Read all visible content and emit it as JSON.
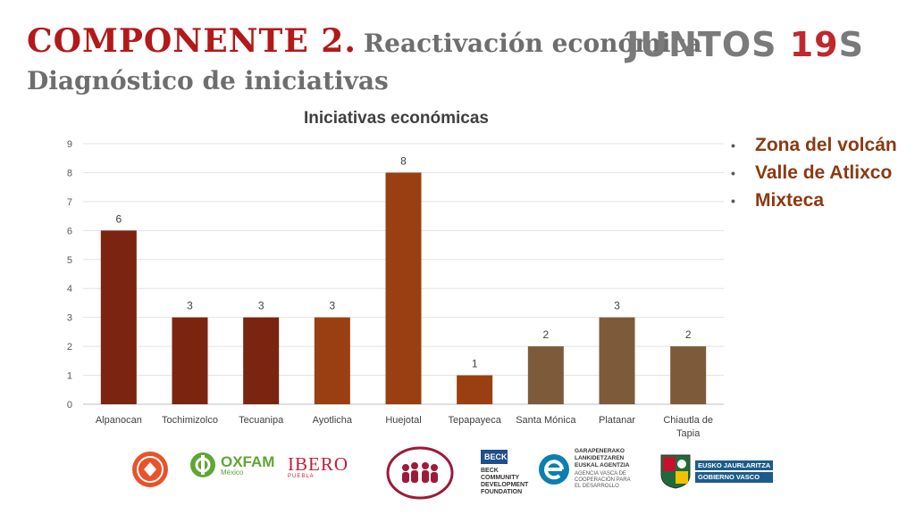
{
  "header": {
    "component": "COMPONENTE 2.",
    "subtitle": "Reactivación económica",
    "line2": "Diagnóstico de iniciativas",
    "brand_text": "JUNTOS",
    "brand_num": "19",
    "brand_suffix": "S"
  },
  "chart_data": {
    "type": "bar",
    "title": "Iniciativas económicas",
    "categories": [
      "Alpanocan",
      "Tochimizolco",
      "Tecuanipa",
      "Ayotlicha",
      "Huejotal",
      "Tepapayeca",
      "Santa Mónica",
      "Platanar",
      "Chiautla de Tapia"
    ],
    "values": [
      6,
      3,
      3,
      3,
      8,
      1,
      2,
      3,
      2
    ],
    "colors": [
      "#7b2410",
      "#7b2410",
      "#7b2410",
      "#9a3f12",
      "#9a3f12",
      "#9a3f12",
      "#7d5a3a",
      "#7d5a3a",
      "#7d5a3a"
    ],
    "ylim": [
      0,
      9
    ],
    "yticks": [
      0,
      1,
      2,
      3,
      4,
      5,
      6,
      7,
      8,
      9
    ],
    "grid": true,
    "xlabel": "",
    "ylabel": ""
  },
  "bullets": [
    {
      "text": "Zona del volcán"
    },
    {
      "text": "Valle de Atlixco"
    },
    {
      "text": "Mixteca"
    }
  ],
  "logos": {
    "oxfam": "OXFAM",
    "oxfam_sub": "México",
    "ibero": "IBERO",
    "ibero_sub": "PUEBLA",
    "beck_top": "BECK",
    "beck_name": "BECK COMMUNITY DEVELOPMENT FOUNDATION",
    "euskal": "GARAPENERAKO LANKIDETZAREN EUSKAL AGENTZIA",
    "euskal_sub": "AGENCIA VASCA DE COOPERACIÓN PARA EL DESARROLLO",
    "gobierno1": "EUSKO JAURLARITZA",
    "gobierno2": "GOBIERNO VASCO"
  }
}
